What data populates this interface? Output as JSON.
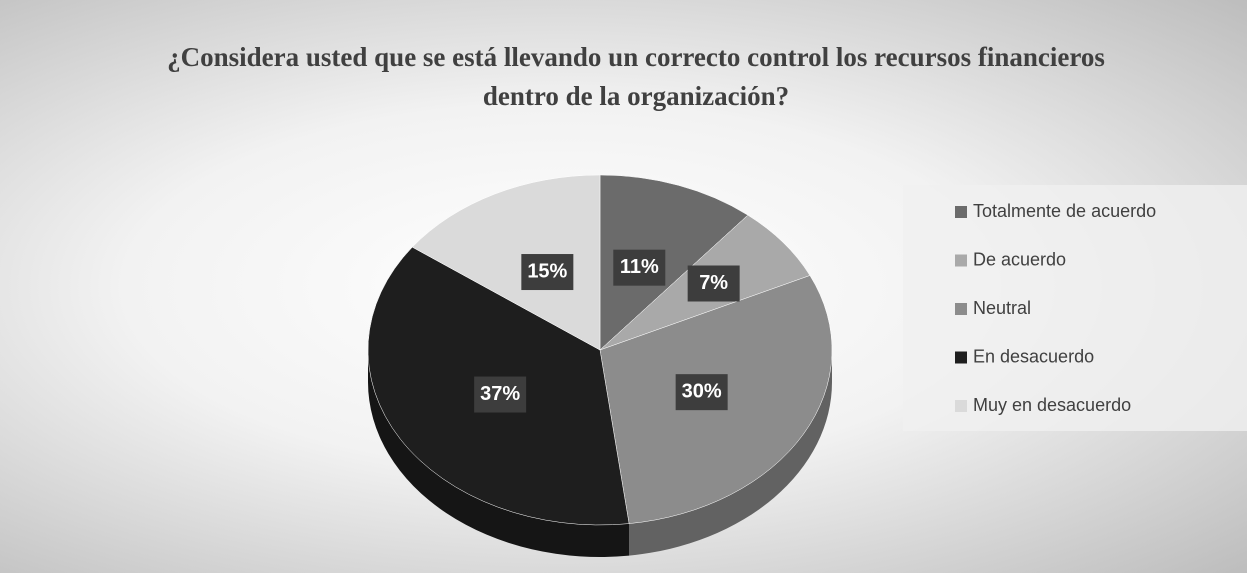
{
  "chart_data": {
    "type": "pie3d",
    "title": "¿Considera usted que se está llevando un correcto control los recursos financieros dentro de la organización?",
    "categories": [
      "Totalmente de acuerdo",
      "De acuerdo",
      "Neutral",
      "En desacuerdo",
      "Muy en desacuerdo"
    ],
    "values": [
      11,
      7,
      30,
      37,
      15
    ],
    "value_labels": [
      "11%",
      "7%",
      "30%",
      "37%",
      "15%"
    ],
    "colors": [
      "#6b6b6b",
      "#a9a9a9",
      "#8c8c8c",
      "#1e1e1e",
      "#dadada"
    ],
    "legend": "right"
  }
}
